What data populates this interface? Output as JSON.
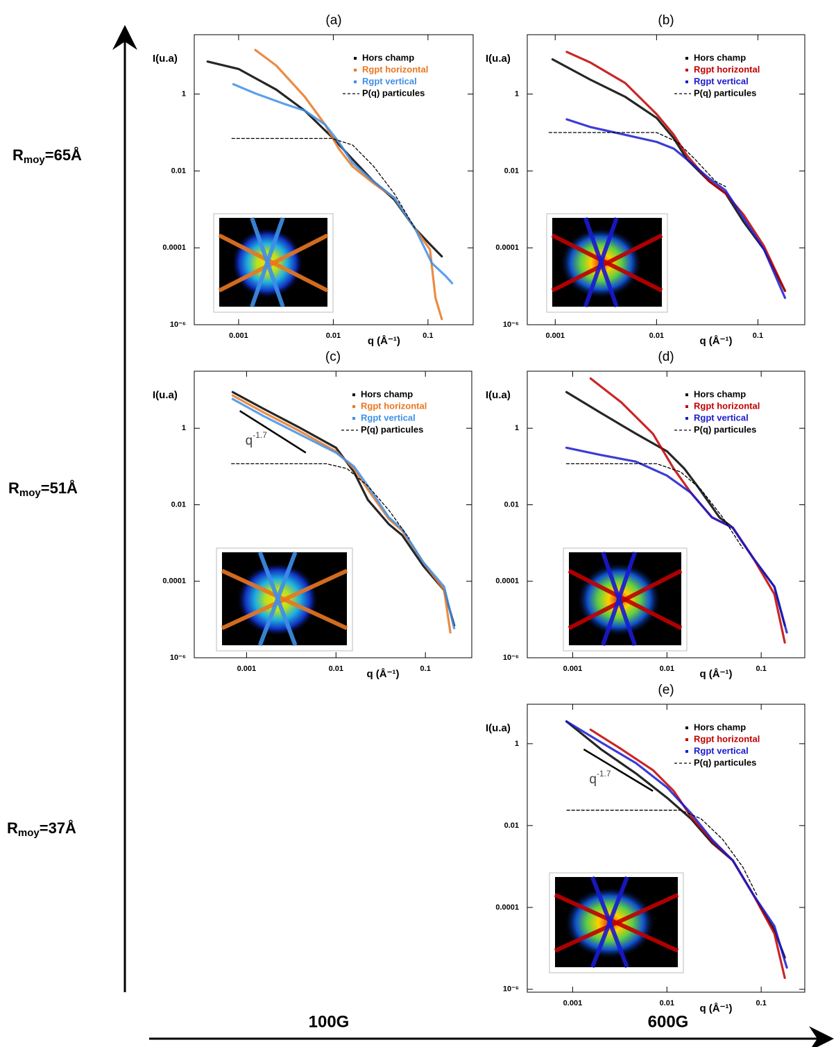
{
  "chart_data": [
    {
      "type": "scatter",
      "title": "(a)",
      "y_label": "I(u.a)",
      "x_label": "q (Å⁻¹)",
      "x_scale": "log",
      "y_scale": "log",
      "grid": false,
      "legend": "upper right",
      "xlim": [
        0.00034,
        0.3
      ],
      "ylim": [
        1e-06,
        35
      ],
      "xticks": [
        0.001,
        0.01,
        0.1
      ],
      "yticks": [
        1,
        0.01,
        0.0001,
        {
          "value": 1e-06,
          "label": "10⁻⁶"
        }
      ],
      "series": [
        {
          "name": "Hors champ",
          "color": "#000000",
          "x": [
            0.00047,
            0.001,
            0.0025,
            0.005,
            0.01,
            0.016,
            0.0265,
            0.044,
            0.073,
            0.1,
            0.14
          ],
          "values": [
            7,
            4.5,
            1.3,
            0.37,
            0.07,
            0.02,
            0.0054,
            0.0018,
            0.00032,
            0.00014,
            6e-05
          ]
        },
        {
          "name": "Rgpt horizontal",
          "color": "#e87722",
          "x": [
            0.0015,
            0.0025,
            0.005,
            0.0082,
            0.0114,
            0.016,
            0.0265,
            0.044,
            0.073,
            0.105,
            0.12,
            0.14
          ],
          "values": [
            14,
            5.5,
            0.85,
            0.16,
            0.038,
            0.013,
            0.0048,
            0.002,
            0.00032,
            9e-05,
            5e-06,
            1.4e-06
          ]
        },
        {
          "name": "Rgpt vertical",
          "color": "#3f8fe8",
          "x": [
            0.00088,
            0.0015,
            0.003,
            0.005,
            0.0082,
            0.0114,
            0.016,
            0.0265,
            0.044,
            0.073,
            0.11,
            0.155,
            0.18
          ],
          "values": [
            1.8,
            1.04,
            0.56,
            0.37,
            0.16,
            0.057,
            0.016,
            0.0054,
            0.002,
            0.00032,
            4e-05,
            1.8e-05,
            1.2e-05
          ]
        },
        {
          "name": "P(q) particules",
          "color": "#000000",
          "style": "dashed",
          "x": [
            0.00085,
            0.0097,
            0.016,
            0.0265,
            0.044,
            0.073
          ],
          "values": [
            0.07,
            0.07,
            0.047,
            0.0134,
            0.0026,
            0.00032
          ]
        }
      ]
    },
    {
      "type": "scatter",
      "title": "(b)",
      "y_label": "I(u.a)",
      "x_label": "q (Å⁻¹)",
      "x_scale": "log",
      "y_scale": "log",
      "grid": false,
      "legend": "upper right",
      "xlim": [
        0.00053,
        0.29
      ],
      "ylim": [
        1e-06,
        35
      ],
      "xticks": [
        0.001,
        0.01,
        0.1
      ],
      "yticks": [
        1,
        0.01,
        0.0001,
        {
          "value": 1e-06,
          "label": "10⁻⁶"
        }
      ],
      "series": [
        {
          "name": "Hors champ",
          "color": "#000000",
          "x": [
            0.00094,
            0.0022,
            0.0049,
            0.01,
            0.0148,
            0.02,
            0.033,
            0.048,
            0.072,
            0.115,
            0.185
          ],
          "values": [
            8,
            2.4,
            0.85,
            0.24,
            0.07,
            0.02,
            0.0054,
            0.0026,
            0.00048,
            9e-05,
            7.6e-06
          ]
        },
        {
          "name": "Rgpt horizontal",
          "color": "#c00000",
          "x": [
            0.0013,
            0.0022,
            0.0049,
            0.01,
            0.0148,
            0.02,
            0.033,
            0.048,
            0.072,
            0.115,
            0.185
          ],
          "values": [
            12.5,
            6.7,
            1.94,
            0.3,
            0.087,
            0.025,
            0.0054,
            0.0026,
            0.00073,
            0.00011,
            7.6e-06
          ]
        },
        {
          "name": "Rgpt vertical",
          "color": "#1a1ad0",
          "x": [
            0.0013,
            0.0022,
            0.0049,
            0.01,
            0.0148,
            0.02,
            0.033,
            0.048,
            0.072,
            0.115,
            0.185
          ],
          "values": [
            0.22,
            0.14,
            0.087,
            0.057,
            0.038,
            0.02,
            0.0064,
            0.0031,
            0.0006,
            9e-05,
            5e-06
          ]
        },
        {
          "name": "P(q) particules",
          "color": "#000000",
          "style": "dashed",
          "x": [
            0.00087,
            0.01,
            0.016,
            0.024,
            0.038,
            0.048
          ],
          "values": [
            0.1,
            0.1,
            0.057,
            0.02,
            0.0054,
            0.0039
          ]
        }
      ]
    },
    {
      "type": "scatter",
      "title": "(c)",
      "y_label": "I(u.a)",
      "x_label": "q (Å⁻¹)",
      "x_scale": "log",
      "y_scale": "log",
      "grid": false,
      "legend": "upper right",
      "xlim": [
        0.00026,
        0.33
      ],
      "ylim": [
        1e-06,
        31
      ],
      "xticks": [
        0.001,
        0.01,
        0.1
      ],
      "yticks": [
        1,
        0.01,
        0.0001,
        {
          "value": 1e-06,
          "label": "10⁻⁶"
        }
      ],
      "series": [
        {
          "name": "Hors champ",
          "color": "#000000",
          "x": [
            0.0007,
            0.0016,
            0.0038,
            0.01,
            0.0159,
            0.0227,
            0.039,
            0.055,
            0.095,
            0.162,
            0.21
          ],
          "values": [
            8.8,
            3.1,
            1.08,
            0.31,
            0.072,
            0.0135,
            0.0031,
            0.0016,
            0.00025,
            5.8e-05,
            7e-06
          ]
        },
        {
          "name": "Rgpt horizontal",
          "color": "#e87722",
          "x": [
            0.0007,
            0.0016,
            0.0038,
            0.01,
            0.0159,
            0.0227,
            0.039,
            0.055,
            0.095,
            0.162,
            0.19
          ],
          "values": [
            7.2,
            2.5,
            0.88,
            0.25,
            0.088,
            0.025,
            0.0042,
            0.0021,
            0.00031,
            5.8e-05,
            4.6e-06
          ]
        },
        {
          "name": "Rgpt vertical",
          "color": "#3f8fe8",
          "x": [
            0.0007,
            0.0016,
            0.0038,
            0.01,
            0.0159,
            0.0227,
            0.039,
            0.055,
            0.095,
            0.162,
            0.21
          ],
          "values": [
            5.8,
            2,
            0.72,
            0.23,
            0.1,
            0.031,
            0.0047,
            0.0023,
            0.00031,
            7.2e-05,
            5.9e-06
          ]
        },
        {
          "name": "P(q) particules",
          "color": "#000000",
          "style": "dashed",
          "x": [
            0.00068,
            0.0078,
            0.0133,
            0.0227,
            0.039,
            0.066
          ],
          "values": [
            0.118,
            0.118,
            0.088,
            0.031,
            0.0072,
            0.0013
          ]
        }
      ],
      "guide": {
        "label": "q",
        "exponent": "-1.7",
        "x": [
          0.00084,
          0.0046
        ],
        "values": [
          2.85,
          0.23
        ]
      }
    },
    {
      "type": "scatter",
      "title": "(d)",
      "y_label": "I(u.a)",
      "x_label": "q (Å⁻¹)",
      "x_scale": "log",
      "y_scale": "log",
      "grid": false,
      "legend": "upper right",
      "xlim": [
        0.00033,
        0.29
      ],
      "ylim": [
        1e-06,
        31
      ],
      "xticks": [
        0.001,
        0.01,
        0.1
      ],
      "yticks": [
        1,
        0.01,
        0.0001,
        {
          "value": 1e-06,
          "label": "10⁻⁶"
        }
      ],
      "series": [
        {
          "name": "Hors champ",
          "color": "#000000",
          "x": [
            0.00086,
            0.002,
            0.0047,
            0.01,
            0.0153,
            0.021,
            0.036,
            0.05,
            0.083,
            0.138,
            0.178
          ],
          "values": [
            8.8,
            2.5,
            0.72,
            0.25,
            0.088,
            0.031,
            0.0047,
            0.0025,
            0.00039,
            7.2e-05,
            7e-06
          ]
        },
        {
          "name": "Rgpt horizontal",
          "color": "#c00000",
          "x": [
            0.00155,
            0.0033,
            0.0071,
            0.0118,
            0.018,
            0.03,
            0.05,
            0.083,
            0.138,
            0.178
          ],
          "values": [
            20,
            4.7,
            0.72,
            0.088,
            0.0205,
            0.0047,
            0.0025,
            0.00039,
            4.6e-05,
            2.5e-06
          ]
        },
        {
          "name": "Rgpt vertical",
          "color": "#1a1ad0",
          "x": [
            0.00086,
            0.002,
            0.0047,
            0.01,
            0.018,
            0.03,
            0.05,
            0.083,
            0.138,
            0.187
          ],
          "values": [
            0.31,
            0.2,
            0.134,
            0.058,
            0.0205,
            0.0047,
            0.0025,
            0.00039,
            7.2e-05,
            4.6e-06
          ]
        },
        {
          "name": "P(q) particules",
          "color": "#000000",
          "style": "dashed",
          "x": [
            0.00086,
            0.0078,
            0.014,
            0.023,
            0.039,
            0.064
          ],
          "values": [
            0.118,
            0.118,
            0.072,
            0.025,
            0.0047,
            0.00072
          ]
        }
      ]
    },
    {
      "type": "scatter",
      "title": "(e)",
      "y_label": "I(u.a)",
      "x_label": "q (Å⁻¹)",
      "x_scale": "log",
      "y_scale": "log",
      "grid": false,
      "legend": "upper right",
      "xlim": [
        0.00033,
        0.29
      ],
      "ylim": [
        8.5e-07,
        9.2
      ],
      "xticks": [
        0.001,
        0.01,
        0.1
      ],
      "yticks": [
        1,
        0.01,
        0.0001,
        {
          "value": 1e-06,
          "label": "10⁻⁶"
        }
      ],
      "series": [
        {
          "name": "Hors champ",
          "color": "#000000",
          "x": [
            0.00086,
            0.002,
            0.0047,
            0.01,
            0.018,
            0.03,
            0.05,
            0.083,
            0.138,
            0.178
          ],
          "values": [
            3.5,
            0.73,
            0.187,
            0.048,
            0.0147,
            0.0038,
            0.0014,
            0.0002,
            2.8e-05,
            6e-06
          ]
        },
        {
          "name": "Rgpt horizontal",
          "color": "#c00000",
          "x": [
            0.00155,
            0.0033,
            0.0071,
            0.0118,
            0.018,
            0.03,
            0.05,
            0.083,
            0.138,
            0.178
          ],
          "values": [
            2.2,
            0.73,
            0.227,
            0.07,
            0.0165,
            0.0042,
            0.0014,
            0.0002,
            2.3e-05,
            1.9e-06
          ]
        },
        {
          "name": "Rgpt vertical",
          "color": "#1a1ad0",
          "x": [
            0.00086,
            0.002,
            0.0047,
            0.01,
            0.018,
            0.03,
            0.05,
            0.083,
            0.138,
            0.187
          ],
          "values": [
            3.5,
            1.08,
            0.335,
            0.086,
            0.02,
            0.0046,
            0.0014,
            0.0002,
            3.5e-05,
            3.4e-06
          ]
        },
        {
          "name": "P(q) particules",
          "color": "#000000",
          "style": "dashed",
          "x": [
            0.00087,
            0.014,
            0.023,
            0.039,
            0.064,
            0.09
          ],
          "values": [
            0.0237,
            0.0237,
            0.0147,
            0.0046,
            0.00096,
            0.0002
          ]
        }
      ],
      "guide": {
        "label": "q",
        "exponent": "-1.7",
        "x": [
          0.00131,
          0.0071
        ],
        "values": [
          0.73,
          0.07
        ]
      }
    }
  ],
  "row_labels": [
    {
      "symbol": "R",
      "subscript": "moy",
      "value": "=65Å"
    },
    {
      "symbol": "R",
      "subscript": "moy",
      "value": "=51Å"
    },
    {
      "symbol": "R",
      "subscript": "moy",
      "value": "=37Å"
    }
  ],
  "column_labels": [
    "100G",
    "600G"
  ]
}
